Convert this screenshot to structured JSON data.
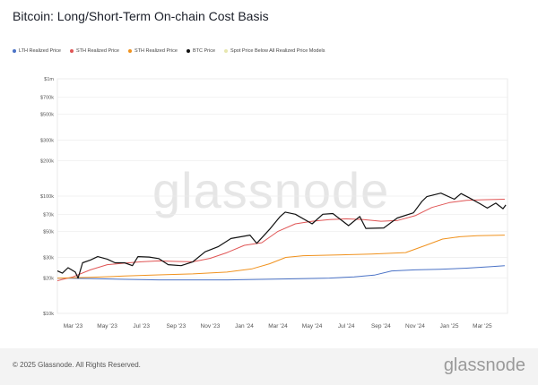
{
  "header": {
    "title": "Bitcoin: Long/Short-Term On-chain Cost Basis"
  },
  "watermark": "glassnode",
  "footer": {
    "copyright": "© 2025 Glassnode. All Rights Reserved.",
    "brand": "glassnode"
  },
  "chart_data": {
    "type": "line",
    "title": "Bitcoin: Long/Short-Term On-chain Cost Basis",
    "y_scale": "log",
    "ylim": [
      10000,
      1000000
    ],
    "xlim": [
      "2023-02-01",
      "2025-04-15"
    ],
    "grid": true,
    "legend_placement": "top-left",
    "y_ticks": [
      {
        "value": 1000000,
        "label": "$1m"
      },
      {
        "value": 700000,
        "label": "$700k"
      },
      {
        "value": 500000,
        "label": "$500k"
      },
      {
        "value": 300000,
        "label": "$300k"
      },
      {
        "value": 200000,
        "label": "$200k"
      },
      {
        "value": 100000,
        "label": "$100k"
      },
      {
        "value": 70000,
        "label": "$70k"
      },
      {
        "value": 50000,
        "label": "$50k"
      },
      {
        "value": 30000,
        "label": "$30k"
      },
      {
        "value": 20000,
        "label": "$20k"
      },
      {
        "value": 10000,
        "label": "$10k"
      }
    ],
    "x_ticks": [
      {
        "date": "2023-03-01",
        "label": "Mar '23"
      },
      {
        "date": "2023-05-01",
        "label": "May '23"
      },
      {
        "date": "2023-07-01",
        "label": "Jul '23"
      },
      {
        "date": "2023-09-01",
        "label": "Sep '23"
      },
      {
        "date": "2023-11-01",
        "label": "Nov '23"
      },
      {
        "date": "2024-01-01",
        "label": "Jan '24"
      },
      {
        "date": "2024-03-01",
        "label": "Mar '24"
      },
      {
        "date": "2024-05-01",
        "label": "May '24"
      },
      {
        "date": "2024-07-01",
        "label": "Jul '24"
      },
      {
        "date": "2024-09-01",
        "label": "Sep '24"
      },
      {
        "date": "2024-11-01",
        "label": "Nov '24"
      },
      {
        "date": "2025-01-01",
        "label": "Jan '25"
      },
      {
        "date": "2025-03-01",
        "label": "Mar '25"
      }
    ],
    "series": [
      {
        "name": "LTH Realized Price",
        "color": "#4a72c6",
        "points": [
          [
            "2023-02-01",
            20000
          ],
          [
            "2023-04-01",
            19800
          ],
          [
            "2023-06-01",
            19500
          ],
          [
            "2023-08-01",
            19300
          ],
          [
            "2023-10-01",
            19300
          ],
          [
            "2023-12-01",
            19300
          ],
          [
            "2024-02-01",
            19500
          ],
          [
            "2024-04-01",
            19700
          ],
          [
            "2024-06-01",
            20000
          ],
          [
            "2024-07-15",
            20500
          ],
          [
            "2024-08-20",
            21200
          ],
          [
            "2024-09-20",
            23000
          ],
          [
            "2024-11-01",
            23500
          ],
          [
            "2024-12-15",
            23800
          ],
          [
            "2025-02-01",
            24300
          ],
          [
            "2025-03-15",
            25000
          ],
          [
            "2025-04-10",
            25500
          ]
        ]
      },
      {
        "name": "STH Realized Price",
        "color": "#e05555",
        "points": [
          [
            "2023-02-01",
            19000
          ],
          [
            "2023-03-01",
            20500
          ],
          [
            "2023-04-01",
            23500
          ],
          [
            "2023-05-01",
            26000
          ],
          [
            "2023-06-01",
            26800
          ],
          [
            "2023-07-01",
            27500
          ],
          [
            "2023-08-01",
            28000
          ],
          [
            "2023-09-01",
            27700
          ],
          [
            "2023-10-01",
            27500
          ],
          [
            "2023-11-01",
            29500
          ],
          [
            "2023-12-01",
            33000
          ],
          [
            "2024-01-01",
            38000
          ],
          [
            "2024-02-01",
            40000
          ],
          [
            "2024-03-01",
            50000
          ],
          [
            "2024-04-01",
            58000
          ],
          [
            "2024-05-01",
            61000
          ],
          [
            "2024-06-01",
            63000
          ],
          [
            "2024-07-01",
            64000
          ],
          [
            "2024-08-01",
            63000
          ],
          [
            "2024-09-01",
            61000
          ],
          [
            "2024-10-01",
            62000
          ],
          [
            "2024-11-01",
            68000
          ],
          [
            "2024-12-01",
            80000
          ],
          [
            "2025-01-01",
            88000
          ],
          [
            "2025-02-01",
            92000
          ],
          [
            "2025-03-01",
            93000
          ],
          [
            "2025-04-10",
            94000
          ]
        ]
      },
      {
        "name": "STH Realized Price",
        "color": "#f0921e",
        "points": [
          [
            "2023-02-01",
            20000
          ],
          [
            "2023-04-01",
            20300
          ],
          [
            "2023-06-01",
            20800
          ],
          [
            "2023-08-01",
            21300
          ],
          [
            "2023-10-01",
            21700
          ],
          [
            "2023-12-01",
            22500
          ],
          [
            "2024-01-15",
            24000
          ],
          [
            "2024-02-15",
            26500
          ],
          [
            "2024-03-15",
            30000
          ],
          [
            "2024-04-15",
            31000
          ],
          [
            "2024-06-15",
            31500
          ],
          [
            "2024-08-15",
            32000
          ],
          [
            "2024-10-15",
            33000
          ],
          [
            "2024-11-20",
            38000
          ],
          [
            "2024-12-20",
            43000
          ],
          [
            "2025-01-20",
            45000
          ],
          [
            "2025-02-20",
            46000
          ],
          [
            "2025-04-10",
            46500
          ]
        ]
      },
      {
        "name": "BTC Price",
        "color": "#111111",
        "points": [
          [
            "2023-02-01",
            23000
          ],
          [
            "2023-02-10",
            22000
          ],
          [
            "2023-02-20",
            24500
          ],
          [
            "2023-03-05",
            22500
          ],
          [
            "2023-03-10",
            20000
          ],
          [
            "2023-03-18",
            27000
          ],
          [
            "2023-04-01",
            28500
          ],
          [
            "2023-04-14",
            30500
          ],
          [
            "2023-05-01",
            29000
          ],
          [
            "2023-05-15",
            27000
          ],
          [
            "2023-06-01",
            27000
          ],
          [
            "2023-06-15",
            25500
          ],
          [
            "2023-06-25",
            30500
          ],
          [
            "2023-07-15",
            30200
          ],
          [
            "2023-08-01",
            29300
          ],
          [
            "2023-08-18",
            26000
          ],
          [
            "2023-09-10",
            25500
          ],
          [
            "2023-10-01",
            27500
          ],
          [
            "2023-10-23",
            33500
          ],
          [
            "2023-11-15",
            37000
          ],
          [
            "2023-12-08",
            43500
          ],
          [
            "2024-01-11",
            46500
          ],
          [
            "2024-01-23",
            39500
          ],
          [
            "2024-02-15",
            52000
          ],
          [
            "2024-03-05",
            67000
          ],
          [
            "2024-03-14",
            73000
          ],
          [
            "2024-04-01",
            70000
          ],
          [
            "2024-05-01",
            58000
          ],
          [
            "2024-05-20",
            70000
          ],
          [
            "2024-06-07",
            71000
          ],
          [
            "2024-07-05",
            56000
          ],
          [
            "2024-07-25",
            67000
          ],
          [
            "2024-08-05",
            53000
          ],
          [
            "2024-09-06",
            53500
          ],
          [
            "2024-09-30",
            65000
          ],
          [
            "2024-10-29",
            72000
          ],
          [
            "2024-11-13",
            90000
          ],
          [
            "2024-11-22",
            99000
          ],
          [
            "2024-12-17",
            106000
          ],
          [
            "2025-01-10",
            94000
          ],
          [
            "2025-01-22",
            105000
          ],
          [
            "2025-02-05",
            97000
          ],
          [
            "2025-02-25",
            86000
          ],
          [
            "2025-03-10",
            79000
          ],
          [
            "2025-03-25",
            87000
          ],
          [
            "2025-04-07",
            78000
          ],
          [
            "2025-04-12",
            84000
          ]
        ]
      },
      {
        "name": "Spot Price Below All Realized Price Models",
        "color": "#e7e7b0",
        "points": []
      }
    ]
  }
}
